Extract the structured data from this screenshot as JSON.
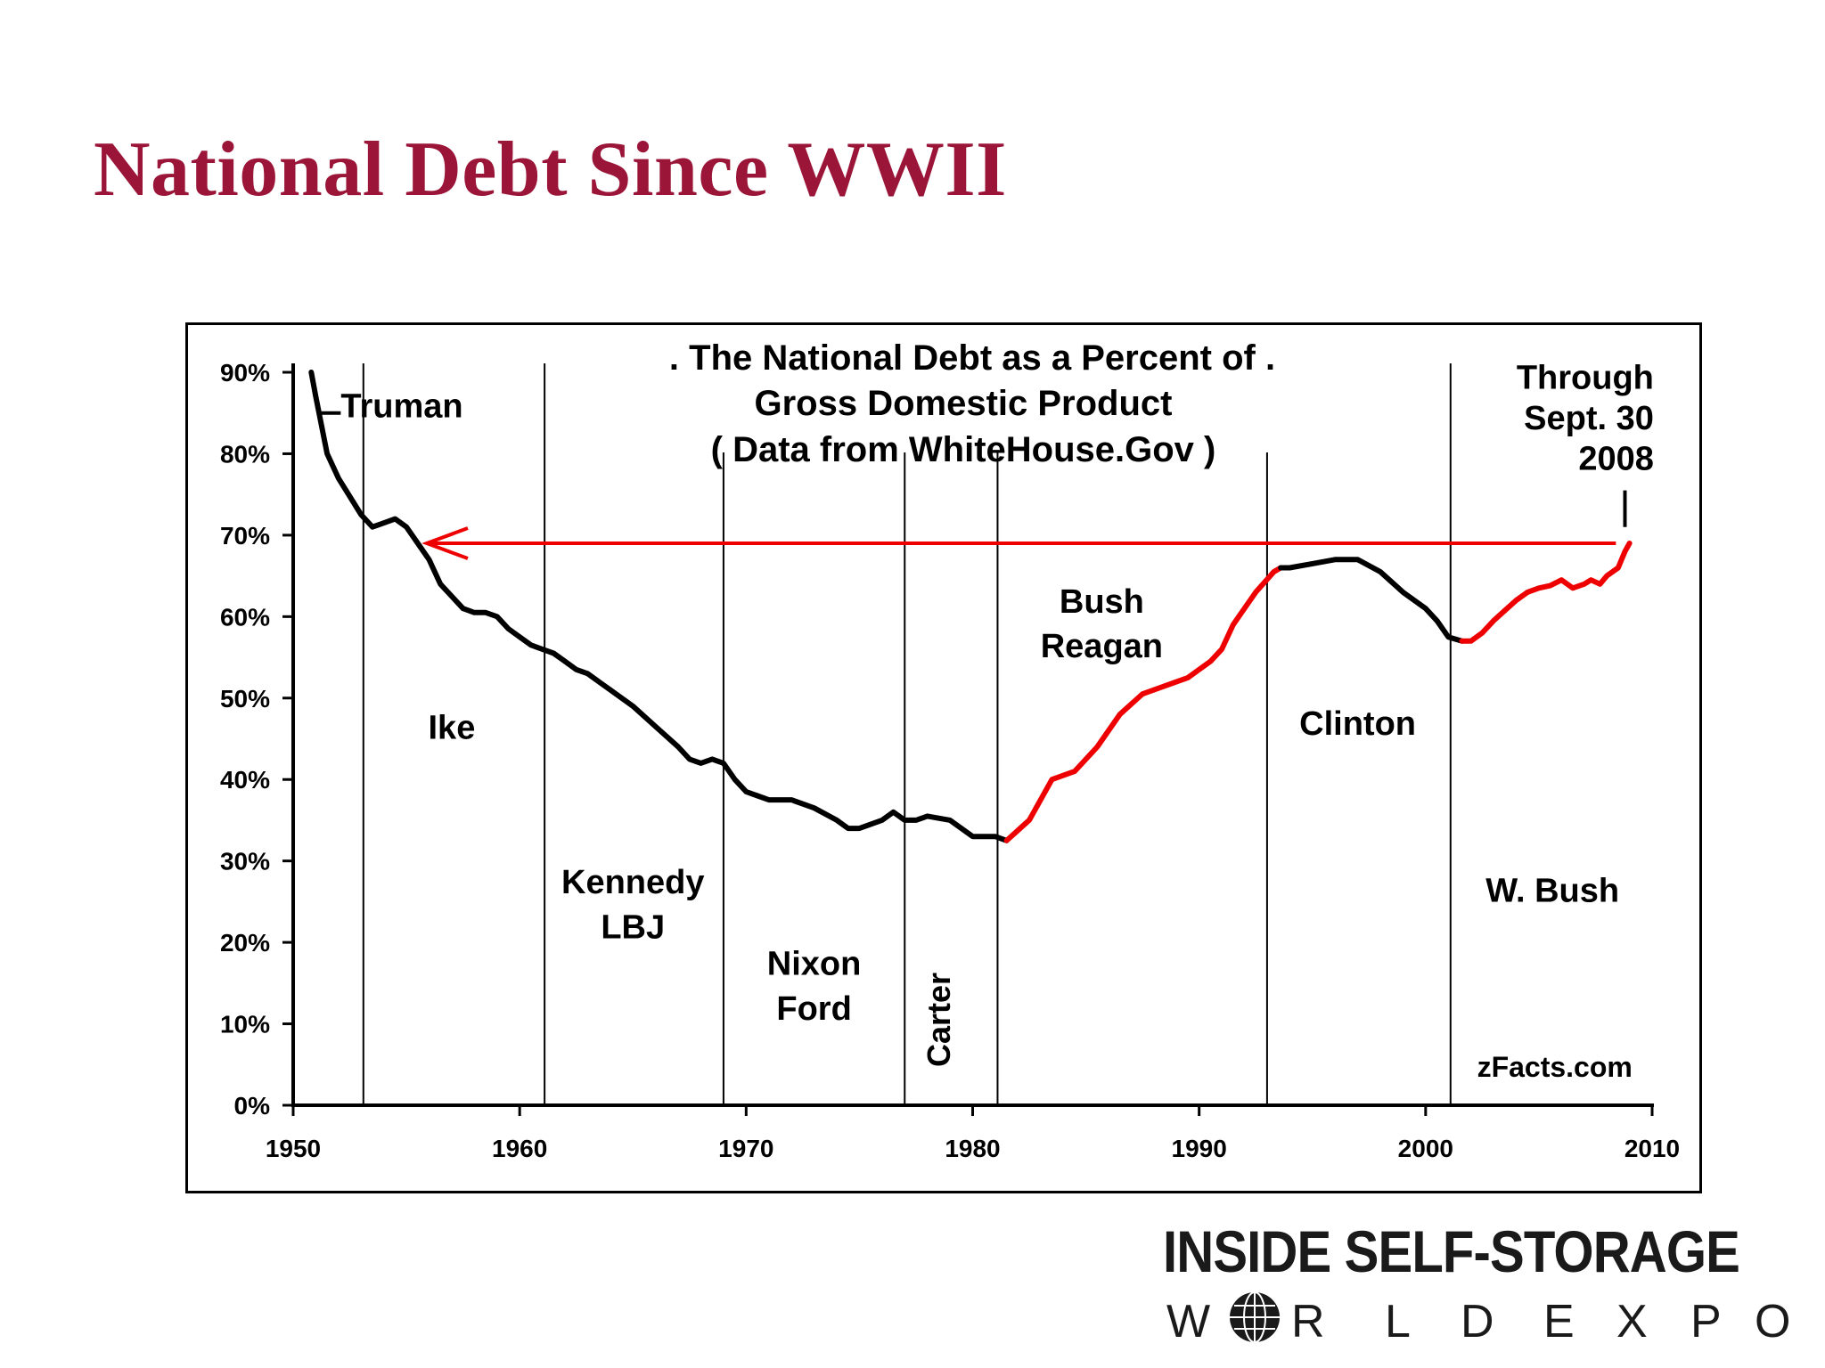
{
  "slide": {
    "title": "National Debt Since WWII"
  },
  "chart_data": {
    "type": "line",
    "title": ". The National Debt as a Percent of .",
    "subtitle_lines": [
      "Gross Domestic Product",
      "( Data from WhiteHouse.Gov )"
    ],
    "xlabel": "",
    "ylabel": "",
    "xlim": [
      1950,
      2010
    ],
    "ylim": [
      0,
      90
    ],
    "x_ticks": [
      "1950",
      "1960",
      "1970",
      "1980",
      "1990",
      "2000",
      "2010"
    ],
    "y_ticks": [
      "0%",
      "10%",
      "20%",
      "30%",
      "40%",
      "50%",
      "60%",
      "70%",
      "80%",
      "90%"
    ],
    "grid": false,
    "series": [
      {
        "color": "#000000",
        "points": [
          [
            1950.8,
            90
          ],
          [
            1951,
            87
          ],
          [
            1951.5,
            80
          ],
          [
            1952,
            77
          ],
          [
            1953,
            72.5
          ],
          [
            1953.5,
            71
          ],
          [
            1954,
            71.5
          ],
          [
            1954.5,
            72
          ],
          [
            1955,
            71
          ],
          [
            1955.5,
            69
          ],
          [
            1956,
            67
          ],
          [
            1956.5,
            64
          ],
          [
            1957,
            62.5
          ],
          [
            1957.5,
            61
          ],
          [
            1958,
            60.5
          ],
          [
            1958.5,
            60.5
          ],
          [
            1959,
            60
          ],
          [
            1959.5,
            58.5
          ],
          [
            1960,
            57.5
          ],
          [
            1960.5,
            56.5
          ],
          [
            1961,
            56
          ],
          [
            1961.5,
            55.5
          ],
          [
            1962,
            54.5
          ],
          [
            1962.5,
            53.5
          ],
          [
            1963,
            53
          ],
          [
            1963.5,
            52
          ],
          [
            1964,
            51
          ],
          [
            1965,
            49
          ],
          [
            1966,
            46.5
          ],
          [
            1967,
            44
          ],
          [
            1967.5,
            42.5
          ],
          [
            1968,
            42
          ],
          [
            1968.5,
            42.5
          ],
          [
            1969,
            42
          ],
          [
            1969.5,
            40
          ],
          [
            1970,
            38.5
          ],
          [
            1970.5,
            38
          ],
          [
            1971,
            37.5
          ],
          [
            1972,
            37.5
          ],
          [
            1973,
            36.5
          ],
          [
            1974,
            35
          ],
          [
            1974.5,
            34
          ],
          [
            1975,
            34
          ],
          [
            1976,
            35
          ],
          [
            1976.5,
            36
          ],
          [
            1977,
            35
          ],
          [
            1977.5,
            35
          ],
          [
            1978,
            35.5
          ],
          [
            1979,
            35
          ],
          [
            1979.5,
            34
          ],
          [
            1980,
            33
          ],
          [
            1980.5,
            33
          ],
          [
            1981,
            33
          ],
          [
            1981.5,
            32.5
          ]
        ]
      },
      {
        "color": "#ee0000",
        "points": [
          [
            1981.5,
            32.5
          ],
          [
            1982.5,
            35
          ],
          [
            1983.5,
            40
          ],
          [
            1984.5,
            41
          ],
          [
            1985.5,
            44
          ],
          [
            1986.5,
            48
          ],
          [
            1987.5,
            50.5
          ],
          [
            1988.5,
            51.5
          ],
          [
            1989.5,
            52.5
          ],
          [
            1990.5,
            54.5
          ],
          [
            1991,
            56
          ],
          [
            1991.5,
            59
          ],
          [
            1992,
            61
          ],
          [
            1992.5,
            63
          ],
          [
            1993.3,
            65.5
          ],
          [
            1993.6,
            66
          ]
        ]
      },
      {
        "color": "#000000",
        "points": [
          [
            1993.6,
            66
          ],
          [
            1994,
            66
          ],
          [
            1995,
            66.5
          ],
          [
            1996,
            67
          ],
          [
            1997,
            67
          ],
          [
            1998,
            65.5
          ],
          [
            1999,
            63
          ],
          [
            2000,
            61
          ],
          [
            2000.5,
            59.5
          ],
          [
            2001,
            57.5
          ],
          [
            2001.6,
            57
          ]
        ]
      },
      {
        "color": "#ee0000",
        "points": [
          [
            2001.6,
            57
          ],
          [
            2002,
            57
          ],
          [
            2002.5,
            58
          ],
          [
            2003,
            59.5
          ],
          [
            2004,
            62
          ],
          [
            2004.5,
            63
          ],
          [
            2005,
            63.5
          ],
          [
            2005.5,
            63.8
          ],
          [
            2006,
            64.5
          ],
          [
            2006.5,
            63.5
          ],
          [
            2007,
            64
          ],
          [
            2007.3,
            64.5
          ],
          [
            2007.7,
            64
          ],
          [
            2008,
            65
          ],
          [
            2008.5,
            66
          ],
          [
            2008.8,
            68
          ],
          [
            2009,
            69
          ]
        ]
      }
    ],
    "vertical_dividers": [
      1953.1,
      1961.1,
      1969.0,
      1977.0,
      1981.1,
      1993.0,
      2001.1
    ],
    "arrow": {
      "from": [
        2008.4,
        69
      ],
      "to": [
        1955.9,
        69
      ],
      "color": "#ee0000"
    },
    "annotations": [
      {
        "id": "truman",
        "text": "Truman",
        "x": 1952.1,
        "y": 84.5
      },
      {
        "id": "ike",
        "text": "Ike",
        "x": 1957,
        "y": 45
      },
      {
        "id": "kennedy",
        "text": "Kennedy",
        "x": 1965,
        "y": 26
      },
      {
        "id": "lbj",
        "text": "LBJ",
        "x": 1965,
        "y": 20.5
      },
      {
        "id": "nixon",
        "text": "Nixon",
        "x": 1973,
        "y": 16
      },
      {
        "id": "ford",
        "text": "Ford",
        "x": 1973,
        "y": 10.5
      },
      {
        "id": "carter",
        "text": "Carter",
        "x": 1979,
        "y": 10.5
      },
      {
        "id": "bush",
        "text": "Bush",
        "x": 1985.7,
        "y": 60.5
      },
      {
        "id": "reagan",
        "text": "Reagan",
        "x": 1985.7,
        "y": 55
      },
      {
        "id": "clinton",
        "text": "Clinton",
        "x": 1997,
        "y": 45.5
      },
      {
        "id": "w-bush",
        "text": "W. Bush",
        "x": 2005.6,
        "y": 25
      },
      {
        "id": "through",
        "text": "Through",
        "x": 2008.5,
        "y": 88
      },
      {
        "id": "sept30",
        "text": "Sept. 30",
        "x": 2008.5,
        "y": 83
      },
      {
        "id": "yr2008",
        "text": "2008",
        "x": 2008.5,
        "y": 78
      },
      {
        "id": "source",
        "text": "zFacts.com",
        "x": 2005.7,
        "y": 3.5
      }
    ]
  },
  "logo": {
    "line1": "INSIDE SELF-STORAGE",
    "line2_letters": [
      "W",
      "R",
      "L",
      "D",
      "E",
      "X",
      "P",
      "O"
    ],
    "globe_icon": "globe-icon"
  }
}
